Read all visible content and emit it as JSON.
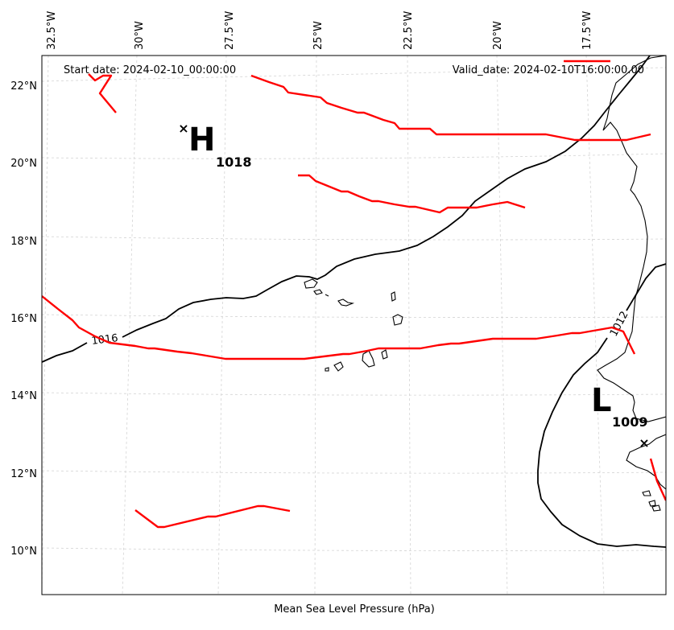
{
  "header": {
    "start_label": "Start date: 2024-02-10_00:00:00",
    "valid_label": "Valid_date: 2024-02-10T16:00:00.00"
  },
  "axes": {
    "x_label": "Mean Sea Level Pressure (hPa)",
    "lon_ticks": [
      "32.5°W",
      "30°W",
      "27.5°W",
      "25°W",
      "22.5°W",
      "20°W",
      "17.5°W"
    ],
    "lat_ticks": [
      "22°N",
      "20°N",
      "18°N",
      "16°N",
      "14°N",
      "12°N",
      "10°N"
    ]
  },
  "pressure_centers": [
    {
      "symbol": "H",
      "value": "1018",
      "marker": "×"
    },
    {
      "symbol": "L",
      "value": "1009",
      "marker": "×"
    }
  ],
  "isobar_labels": [
    "1016",
    "1012"
  ],
  "colors": {
    "front": "#ff0000",
    "isobar": "#000000",
    "grid": "#d4d4d4"
  }
}
